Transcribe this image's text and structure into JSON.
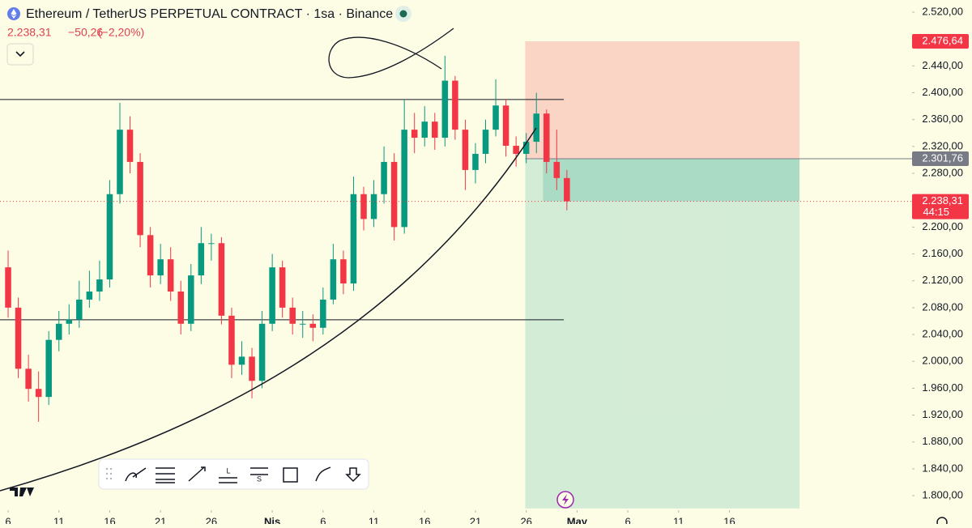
{
  "header": {
    "title": "Ethereum / TetherUS PERPETUAL CONTRACT · 1sa · Binance",
    "last": "2.238,31",
    "change": "−50,26",
    "change_pct": "(−2,20%)"
  },
  "toolbar": {
    "long_letter": "L",
    "short_letter": "S"
  },
  "chart_data": {
    "type": "candlestick",
    "x": [
      5,
      6,
      7,
      8,
      9,
      10,
      11,
      12,
      13,
      14,
      15,
      16,
      17,
      18,
      19,
      20,
      21,
      22,
      23,
      24,
      25,
      26,
      27,
      28,
      29,
      30,
      31,
      32,
      33,
      34,
      35,
      36,
      37,
      38,
      39,
      40,
      41,
      42,
      43,
      44,
      45,
      46,
      47,
      48,
      49,
      50,
      51,
      52,
      53,
      54,
      55,
      56,
      57,
      58,
      59,
      60
    ],
    "open": [
      2140,
      2080,
      1989,
      1959,
      1947,
      2032,
      2056,
      2062,
      2092,
      2104,
      2122,
      2249,
      2345,
      2297,
      2188,
      2128,
      2152,
      2104,
      2056,
      2128,
      2176,
      2176,
      2068,
      1995,
      2007,
      1971,
      2056,
      2140,
      2080,
      2056,
      2056,
      2050,
      2092,
      2152,
      2116,
      2249,
      2212,
      2249,
      2297,
      2200,
      2345,
      2333,
      2357,
      2333,
      2418,
      2345,
      2285,
      2309,
      2345,
      2381,
      2321,
      2309,
      2327,
      2369,
      2297,
      2273
    ],
    "high": [
      2165,
      2095,
      2010,
      1985,
      2045,
      2075,
      2085,
      2120,
      2135,
      2150,
      2270,
      2385,
      2365,
      2310,
      2200,
      2175,
      2170,
      2120,
      2145,
      2200,
      2190,
      2185,
      2080,
      2030,
      2020,
      2075,
      2160,
      2150,
      2095,
      2075,
      2070,
      2110,
      2175,
      2165,
      2275,
      2260,
      2270,
      2320,
      2310,
      2390,
      2370,
      2380,
      2370,
      2455,
      2425,
      2360,
      2325,
      2360,
      2420,
      2390,
      2335,
      2340,
      2400,
      2375,
      2345,
      2285
    ],
    "low": [
      2065,
      1975,
      1940,
      1910,
      1935,
      2015,
      2040,
      2050,
      2080,
      2090,
      2110,
      2235,
      2280,
      2170,
      2110,
      2115,
      2090,
      2040,
      2045,
      2115,
      2150,
      2055,
      1975,
      1980,
      1945,
      1960,
      2045,
      2065,
      2040,
      2035,
      2030,
      2040,
      2085,
      2100,
      2105,
      2195,
      2200,
      2235,
      2180,
      2190,
      2310,
      2320,
      2315,
      2320,
      2330,
      2255,
      2265,
      2295,
      2335,
      2305,
      2290,
      2295,
      2310,
      2280,
      2255,
      2225
    ],
    "close": [
      2080,
      1989,
      1959,
      1947,
      2032,
      2056,
      2062,
      2092,
      2104,
      2122,
      2249,
      2345,
      2297,
      2188,
      2128,
      2152,
      2104,
      2056,
      2128,
      2176,
      2176,
      2068,
      1995,
      2007,
      1971,
      2056,
      2140,
      2080,
      2056,
      2056,
      2050,
      2092,
      2152,
      2116,
      2249,
      2212,
      2249,
      2297,
      2200,
      2345,
      2333,
      2357,
      2333,
      2418,
      2345,
      2285,
      2309,
      2345,
      2381,
      2321,
      2309,
      2327,
      2369,
      2297,
      2273,
      2238.31
    ],
    "up_color": "#089981",
    "down_color": "#f23645",
    "xlim": [
      4.2,
      93.5
    ],
    "xticks": [
      {
        "value": 5,
        "label": "6"
      },
      {
        "value": 10,
        "label": "11"
      },
      {
        "value": 15,
        "label": "16"
      },
      {
        "value": 20,
        "label": "21"
      },
      {
        "value": 25,
        "label": "26"
      },
      {
        "value": 31,
        "label": "Nis"
      },
      {
        "value": 36,
        "label": "6"
      },
      {
        "value": 41,
        "label": "11"
      },
      {
        "value": 46,
        "label": "16"
      },
      {
        "value": 51,
        "label": "21"
      },
      {
        "value": 56,
        "label": "26"
      },
      {
        "value": 61,
        "label": "May"
      },
      {
        "value": 66,
        "label": "6"
      },
      {
        "value": 71,
        "label": "11"
      },
      {
        "value": 76,
        "label": "16"
      }
    ],
    "ylim": [
      1778.4,
      2538.1
    ],
    "yticks": [
      {
        "value": 2520,
        "label": "2.520,00"
      },
      {
        "value": 2480,
        "label": "2.480,00"
      },
      {
        "value": 2440,
        "label": "2.440,00"
      },
      {
        "value": 2400,
        "label": "2.400,00"
      },
      {
        "value": 2360,
        "label": "2.360,00"
      },
      {
        "value": 2320,
        "label": "2.320,00"
      },
      {
        "value": 2280,
        "label": "2.280,00"
      },
      {
        "value": 2240,
        "label": "2.240,00"
      },
      {
        "value": 2200,
        "label": "2.200,00"
      },
      {
        "value": 2160,
        "label": "2.160,00"
      },
      {
        "value": 2120,
        "label": "2.120,00"
      },
      {
        "value": 2080,
        "label": "2.080,00"
      },
      {
        "value": 2040,
        "label": "2.040,00"
      },
      {
        "value": 2000,
        "label": "2.000,00"
      },
      {
        "value": 1960,
        "label": "1.960,00"
      },
      {
        "value": 1920,
        "label": "1.920,00"
      },
      {
        "value": 1880,
        "label": "1.880,00"
      },
      {
        "value": 1840,
        "label": "1.840,00"
      },
      {
        "value": 1800,
        "label": "1.800,00"
      }
    ],
    "levels": [
      {
        "value": 2390,
        "start": 4.2,
        "end": 59.7
      },
      {
        "value": 2062,
        "start": 4.2,
        "end": 59.7
      }
    ],
    "position": {
      "start": 55.9,
      "end": 82.9,
      "target": {
        "value": 2476.64,
        "label": "2.476,64"
      },
      "entry": {
        "value": 2301.76,
        "label": "2.301,76"
      },
      "stop": 1781
    },
    "current": {
      "value": 2238.31,
      "label": "2.238,31",
      "countdown": "44:15"
    }
  }
}
